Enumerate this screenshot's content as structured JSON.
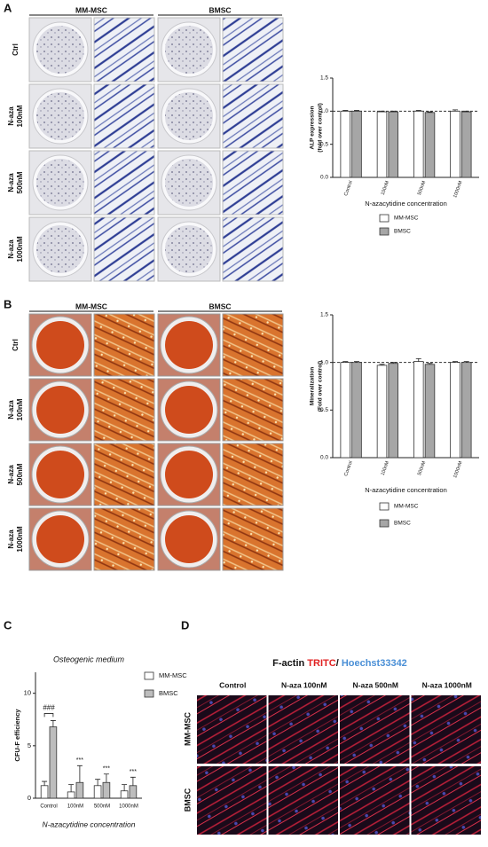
{
  "panel_a": {
    "label": "A",
    "columns": [
      "MM-MSC",
      "BMSC"
    ],
    "rows": [
      [
        "Ctrl"
      ],
      [
        "N-aza",
        "100nM"
      ],
      [
        "N-aza",
        "500nM"
      ],
      [
        "N-aza",
        "1000nM"
      ]
    ]
  },
  "panel_b": {
    "label": "B",
    "columns": [
      "MM-MSC",
      "BMSC"
    ],
    "rows": [
      [
        "Ctrl"
      ],
      [
        "N-aza",
        "100nM"
      ],
      [
        "N-aza",
        "500nM"
      ],
      [
        "N-aza",
        "1000nM"
      ]
    ]
  },
  "panel_c": {
    "label": "C"
  },
  "panel_d": {
    "label": "D",
    "title": [
      {
        "text": "F-actin ",
        "color": "#111111"
      },
      {
        "text": "TRITC",
        "color": "#e02020"
      },
      {
        "text": "/ ",
        "color": "#111111"
      },
      {
        "text": "Hoechst33342",
        "color": "#4a8fd6"
      }
    ],
    "columns": [
      "Control",
      "N-aza 100nM",
      "N-aza 500nM",
      "N-aza 1000nM"
    ],
    "rows": [
      "MM-MSC",
      "BMSC"
    ]
  },
  "chart_data": [
    {
      "type": "bar",
      "ylabel": [
        "ALP expression",
        "(fold over control)"
      ],
      "xlabel": "N-azacytidine concentration",
      "categories": [
        "Control",
        "100nM",
        "500nM",
        "1000nM"
      ],
      "series": [
        {
          "name": "MM-MSC",
          "color": "#ffffff",
          "values": [
            1.0,
            0.99,
            1.0,
            1.0
          ],
          "errors": [
            0.01,
            0.01,
            0.01,
            0.02
          ]
        },
        {
          "name": "BMSC",
          "color": "#a6a6a6",
          "values": [
            1.0,
            0.99,
            0.98,
            0.99
          ],
          "errors": [
            0.01,
            0.01,
            0.01,
            0.01
          ]
        }
      ],
      "ylim": [
        0,
        1.5
      ],
      "yticks": [
        {
          "value": 0,
          "label": "0.0"
        },
        {
          "value": 0.5,
          "label": "0.5"
        },
        {
          "value": 1,
          "label": "1.0"
        },
        {
          "value": 1.5,
          "label": "1.5"
        }
      ],
      "reference_line": 1,
      "legend": "below"
    },
    {
      "type": "bar",
      "ylabel": [
        "Mineralization",
        "(Fold over control)"
      ],
      "xlabel": "N-azacytidine concentration",
      "categories": [
        "Control",
        "100nM",
        "500nM",
        "1000nM"
      ],
      "series": [
        {
          "name": "MM-MSC",
          "color": "#ffffff",
          "values": [
            1.0,
            0.97,
            1.01,
            1.0
          ],
          "errors": [
            0.01,
            0.01,
            0.03,
            0.01
          ]
        },
        {
          "name": "BMSC",
          "color": "#a6a6a6",
          "values": [
            1.0,
            0.99,
            0.98,
            1.0
          ],
          "errors": [
            0.01,
            0.01,
            0.01,
            0.01
          ]
        }
      ],
      "ylim": [
        0,
        1.5
      ],
      "yticks": [
        {
          "value": 0,
          "label": "0.0"
        },
        {
          "value": 0.5,
          "label": "0.5"
        },
        {
          "value": 1,
          "label": "1.0"
        },
        {
          "value": 1.5,
          "label": "1.5"
        }
      ],
      "reference_line": 1,
      "legend": "below"
    },
    {
      "type": "bar",
      "title": "Osteogenic medium",
      "ylabel": [
        "CFU-F efficiency"
      ],
      "xlabel": "N-azacytidine concentration",
      "categories": [
        "Control",
        "100nM",
        "500nM",
        "1000nM"
      ],
      "series": [
        {
          "name": "MM-MSC",
          "color": "#ffffff",
          "values": [
            1.2,
            0.6,
            1.2,
            0.7
          ],
          "errors": [
            0.4,
            0.7,
            0.6,
            0.6
          ]
        },
        {
          "name": "BMSC",
          "color": "#bdbdbd",
          "values": [
            6.8,
            1.5,
            1.5,
            1.2
          ],
          "errors": [
            0.6,
            1.6,
            0.8,
            0.8
          ]
        }
      ],
      "ylim": [
        0,
        12
      ],
      "yticks": [
        0,
        5,
        10
      ],
      "annotations": [
        "###",
        "***",
        "***",
        "***"
      ],
      "legend": "right"
    }
  ]
}
